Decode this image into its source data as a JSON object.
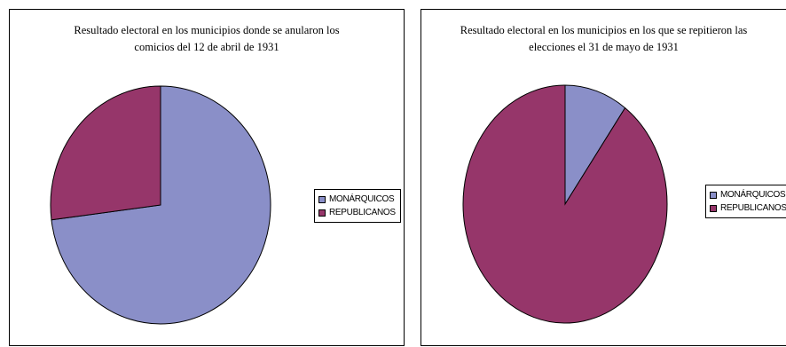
{
  "colors": {
    "monarquicos": "#8a8fc8",
    "republicanos": "#96366a"
  },
  "chart_data": [
    {
      "type": "pie",
      "title": "Resultado electoral en los municipios donde se anularon los comicios del 12 de abril de 1931",
      "categories": [
        "MONÁRQUICOS",
        "REPUBLICANOS"
      ],
      "values": [
        73,
        27
      ],
      "legend": "right"
    },
    {
      "type": "pie",
      "title": "Resultado electoral en los municipios en los que se repitieron las elecciones el 31 de mayo de 1931",
      "categories": [
        "MONÁRQUICOS",
        "REPUBLICANOS"
      ],
      "values": [
        10,
        90
      ],
      "legend": "right"
    }
  ]
}
